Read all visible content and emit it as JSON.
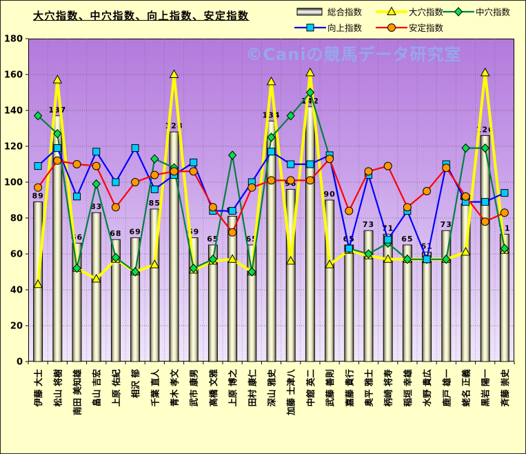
{
  "title": "大穴指数、中穴指数、向上指数、安定指数",
  "watermark": "©Caniの競馬データ研究室",
  "colors": {
    "background": "#ffffc8",
    "plot_top": "#b37adc",
    "plot_bottom": "#efe6fb",
    "bar_light": "#fdfde9",
    "bar_dark": "#33332b",
    "longshot_line": "#ffff00",
    "midshot_line": "#008040",
    "midshot_marker": "#00e04c",
    "improve_line": "#0000ff",
    "improve_marker": "#00ccff",
    "stability_line": "#ff0000",
    "stability_marker": "#ff9900",
    "watermark_color": "#92aeef"
  },
  "legend": {
    "items": [
      {
        "label": "総合指数",
        "type": "bar",
        "key": "total-index",
        "row": 0,
        "col": 0
      },
      {
        "label": "大穴指数",
        "type": "triangle",
        "key": "longshot-index",
        "row": 0,
        "col": 1
      },
      {
        "label": "中穴指数",
        "type": "diamond",
        "key": "midshot-index",
        "row": 0,
        "col": 2
      },
      {
        "label": "向上指数",
        "type": "square",
        "key": "improvement-index",
        "row": 1,
        "col": 0
      },
      {
        "label": "安定指数",
        "type": "circle",
        "key": "stability-index",
        "row": 1,
        "col": 1
      }
    ]
  },
  "chart_data": {
    "type": "bar+line",
    "title": "大穴指数、中穴指数、向上指数、安定指数",
    "ylim": [
      0,
      180
    ],
    "ytick_step": 20,
    "grid": true,
    "legend_position": "top-right",
    "bar_labels_shown": true,
    "x_labels_rotated_degrees": -90,
    "categories": [
      "伊藤 大士",
      "松山 将樹",
      "南田 美知雄",
      "畠山 吉宏",
      "上原 佑紀",
      "相沢 郁",
      "千葉 直人",
      "青木 孝文",
      "武市 康男",
      "高橋 文雅",
      "上原 博之",
      "田村 康仁",
      "深山 雅史",
      "加藤 士津八",
      "中舘 英二",
      "武藤 善則",
      "嘉藤 貴行",
      "奥平 雅士",
      "柄崎 将寿",
      "稲垣 幸雄",
      "水野 貴広",
      "鹿戸 雄一",
      "蛯名 正義",
      "黒岩 陽一",
      "斉藤 崇史"
    ],
    "series": [
      {
        "name": "総合指数",
        "key": "total-index",
        "type": "bar",
        "marker": "none",
        "values": [
          89,
          137,
          66,
          83,
          68,
          69,
          85,
          128,
          69,
          65,
          81,
          65,
          134,
          96,
          142,
          90,
          65,
          73,
          71,
          65,
          61,
          73,
          88,
          126,
          71
        ]
      },
      {
        "name": "大穴指数",
        "key": "longshot-index",
        "type": "line",
        "marker": "triangle",
        "color": "#ffff00",
        "values": [
          43,
          157,
          52,
          46,
          57,
          50,
          54,
          160,
          51,
          56,
          57,
          50,
          156,
          56,
          161,
          54,
          62,
          59,
          57,
          57,
          57,
          57,
          61,
          161,
          62
        ]
      },
      {
        "name": "中穴指数",
        "key": "midshot-index",
        "type": "line",
        "marker": "diamond",
        "color": "#008040",
        "values": [
          137,
          127,
          52,
          99,
          58,
          50,
          113,
          108,
          52,
          57,
          115,
          50,
          125,
          137,
          150,
          114,
          63,
          60,
          66,
          57,
          57,
          57,
          119,
          119,
          63
        ]
      },
      {
        "name": "向上指数",
        "key": "improvement-index",
        "type": "line",
        "marker": "square",
        "color": "#0000ff",
        "values": [
          109,
          119,
          92,
          117,
          100,
          119,
          96,
          104,
          111,
          84,
          84,
          100,
          117,
          110,
          110,
          115,
          63,
          104,
          68,
          84,
          57,
          110,
          89,
          89,
          94
        ]
      },
      {
        "name": "安定指数",
        "key": "stability-index",
        "type": "line",
        "marker": "circle",
        "color": "#ff0000",
        "values": [
          97,
          112,
          110,
          109,
          86,
          100,
          104,
          106,
          106,
          86,
          72,
          97,
          101,
          101,
          101,
          113,
          84,
          106,
          109,
          86,
          95,
          108,
          92,
          78,
          83
        ]
      }
    ]
  }
}
